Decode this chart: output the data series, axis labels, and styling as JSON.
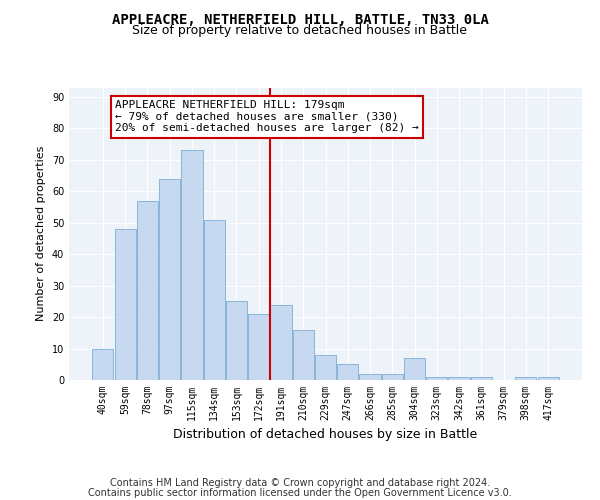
{
  "title": "APPLEACRE, NETHERFIELD HILL, BATTLE, TN33 0LA",
  "subtitle": "Size of property relative to detached houses in Battle",
  "xlabel": "Distribution of detached houses by size in Battle",
  "ylabel": "Number of detached properties",
  "bar_labels": [
    "40sqm",
    "59sqm",
    "78sqm",
    "97sqm",
    "115sqm",
    "134sqm",
    "153sqm",
    "172sqm",
    "191sqm",
    "210sqm",
    "229sqm",
    "247sqm",
    "266sqm",
    "285sqm",
    "304sqm",
    "323sqm",
    "342sqm",
    "361sqm",
    "379sqm",
    "398sqm",
    "417sqm"
  ],
  "bar_values": [
    10,
    48,
    57,
    64,
    73,
    51,
    25,
    21,
    24,
    16,
    8,
    5,
    2,
    2,
    7,
    1,
    1,
    1,
    0,
    1,
    1
  ],
  "bar_color": "#c6d9f0",
  "bar_edgecolor": "#7bafd4",
  "vline_color": "#cc0000",
  "vline_x": 7.5,
  "annotation_text": "APPLEACRE NETHERFIELD HILL: 179sqm\n← 79% of detached houses are smaller (330)\n20% of semi-detached houses are larger (82) →",
  "annotation_box_edgecolor": "#cc0000",
  "annotation_box_facecolor": "#ffffff",
  "yticks": [
    0,
    10,
    20,
    30,
    40,
    50,
    60,
    70,
    80,
    90
  ],
  "ylim": [
    0,
    93
  ],
  "footer_line1": "Contains HM Land Registry data © Crown copyright and database right 2024.",
  "footer_line2": "Contains public sector information licensed under the Open Government Licence v3.0.",
  "background_color": "#eef2f9",
  "grid_color": "#ffffff",
  "title_fontsize": 10,
  "subtitle_fontsize": 9,
  "xlabel_fontsize": 9,
  "ylabel_fontsize": 8,
  "tick_fontsize": 7,
  "annotation_fontsize": 8,
  "footer_fontsize": 7
}
